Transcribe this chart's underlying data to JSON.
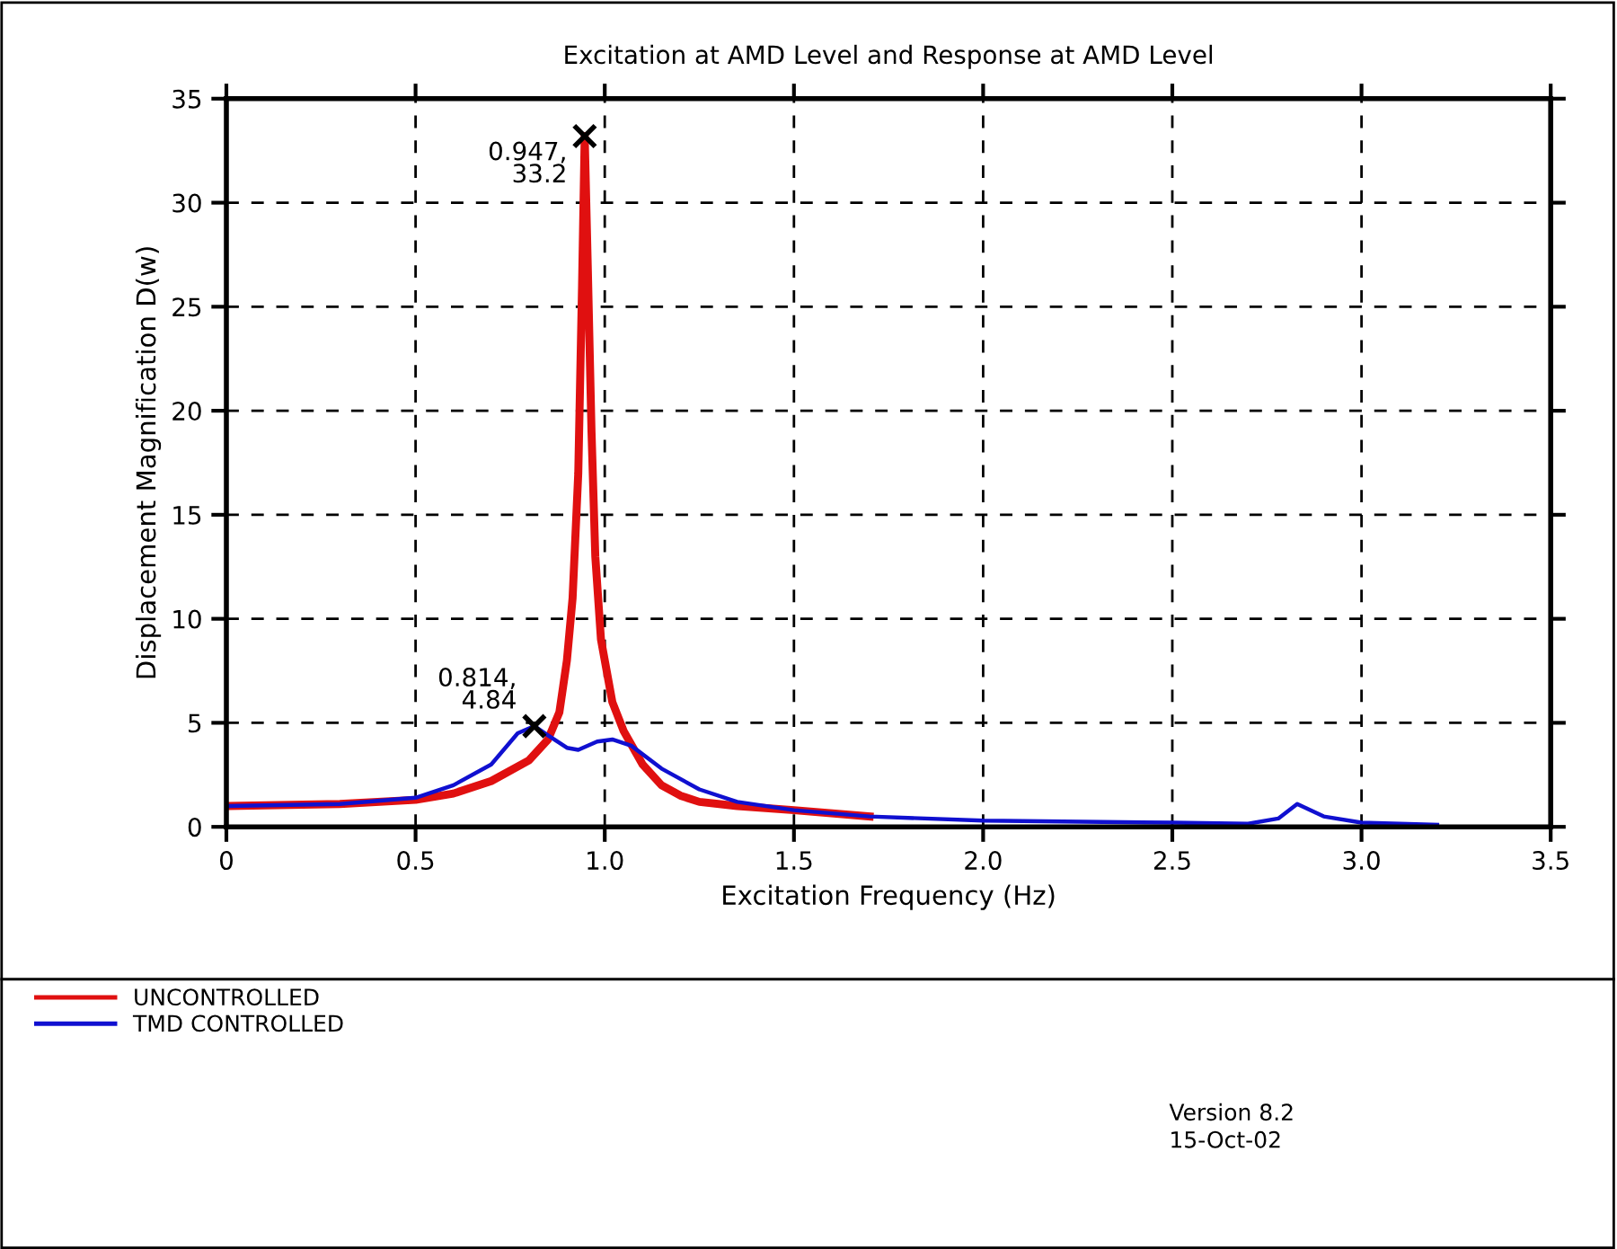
{
  "chart_data": {
    "type": "line",
    "title": "Excitation at AMD Level and Response at AMD Level",
    "xlabel": "Excitation Frequency (Hz)",
    "ylabel": "Displacement Magnification D(w)",
    "xlim": [
      0,
      3.5
    ],
    "xticks": [
      {
        "value": 0,
        "label": "0"
      },
      0.5,
      {
        "value": 1,
        "label": "1.0"
      },
      1.5,
      {
        "value": 2,
        "label": "2.0"
      },
      2.5,
      {
        "value": 3,
        "label": "3.0"
      },
      3.5
    ],
    "ylim": [
      0,
      35
    ],
    "yticks": [
      0,
      5,
      10,
      15,
      20,
      25,
      30,
      35
    ],
    "grid": true,
    "legend": "bottom left",
    "line_style": "solid",
    "series": [
      {
        "name": "UNCONTROLLED",
        "color": "#e01010",
        "x": [
          0,
          0.3,
          0.5,
          0.6,
          0.7,
          0.8,
          0.85,
          0.88,
          0.9,
          0.915,
          0.93,
          0.94,
          0.947,
          0.955,
          0.965,
          0.975,
          0.99,
          1.02,
          1.05,
          1.1,
          1.15,
          1.2,
          1.25,
          1.35,
          1.5,
          1.7
        ],
        "values": [
          1.0,
          1.1,
          1.3,
          1.6,
          2.2,
          3.2,
          4.2,
          5.5,
          8,
          11,
          17,
          26,
          33.2,
          27,
          19,
          13,
          9,
          6,
          4.6,
          3.0,
          2.0,
          1.5,
          1.2,
          1.0,
          0.8,
          0.5
        ]
      },
      {
        "name": "TMD CONTROLLED",
        "color": "#1010d0",
        "x": [
          0,
          0.3,
          0.5,
          0.6,
          0.7,
          0.77,
          0.814,
          0.85,
          0.9,
          0.93,
          0.98,
          1.02,
          1.07,
          1.15,
          1.25,
          1.35,
          1.5,
          1.7,
          2.0,
          2.5,
          2.7,
          2.78,
          2.83,
          2.9,
          3.0,
          3.2
        ],
        "values": [
          1.0,
          1.1,
          1.4,
          2.0,
          3.0,
          4.5,
          4.84,
          4.4,
          3.8,
          3.7,
          4.1,
          4.2,
          3.9,
          2.8,
          1.8,
          1.2,
          0.8,
          0.5,
          0.3,
          0.2,
          0.15,
          0.4,
          1.1,
          0.5,
          0.2,
          0.1
        ]
      },
      {
        "type": "scatter",
        "color": "#000000",
        "marker": "cross",
        "x": [
          0.947,
          0.814
        ],
        "values": [
          33.2,
          4.84
        ]
      }
    ],
    "annotations": [
      {
        "text": "0.947,\n33.2",
        "x": 0.947,
        "y": 33.2
      },
      {
        "text": "0.814,\n4.84",
        "x": 0.814,
        "y": 4.84
      },
      "Version 8.2",
      "15-Oct-02"
    ]
  }
}
